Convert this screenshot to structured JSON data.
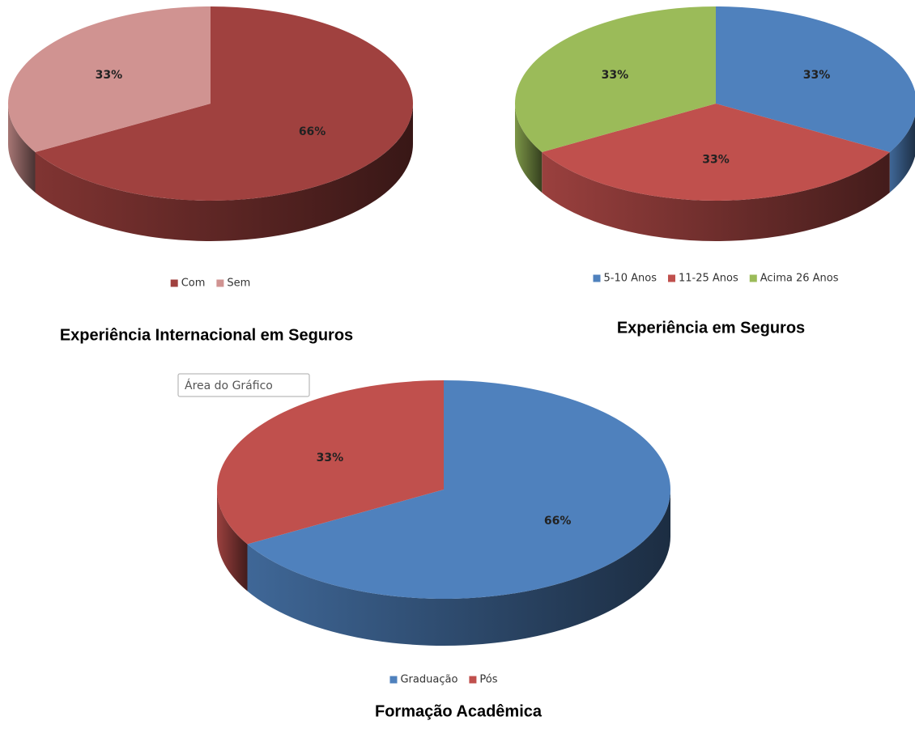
{
  "chart_data": [
    {
      "type": "pie",
      "title": "Experiência Internacional em Seguros",
      "categories": [
        "Com",
        "Sem"
      ],
      "values": [
        66,
        33
      ],
      "value_labels": [
        "66%",
        "33%"
      ],
      "colors": [
        "#a0413f",
        "#d09391"
      ],
      "legend": "bottom"
    },
    {
      "type": "pie",
      "title": "Experiência em Seguros",
      "categories": [
        "5-10 Anos",
        "11-25 Anos",
        "Acima 26 Anos"
      ],
      "values": [
        33,
        33,
        33
      ],
      "value_labels": [
        "33%",
        "33%",
        "33%"
      ],
      "colors": [
        "#4f81bd",
        "#c0504d",
        "#9bbb59"
      ],
      "legend": "bottom"
    },
    {
      "type": "pie",
      "title": "Formação Acadêmica",
      "categories": [
        "Graduação",
        "Pós"
      ],
      "values": [
        66,
        33
      ],
      "value_labels": [
        "66%",
        "33%"
      ],
      "colors": [
        "#4f81bd",
        "#c0504d"
      ],
      "legend": "bottom",
      "annotation": "Área do Gráfico"
    }
  ]
}
